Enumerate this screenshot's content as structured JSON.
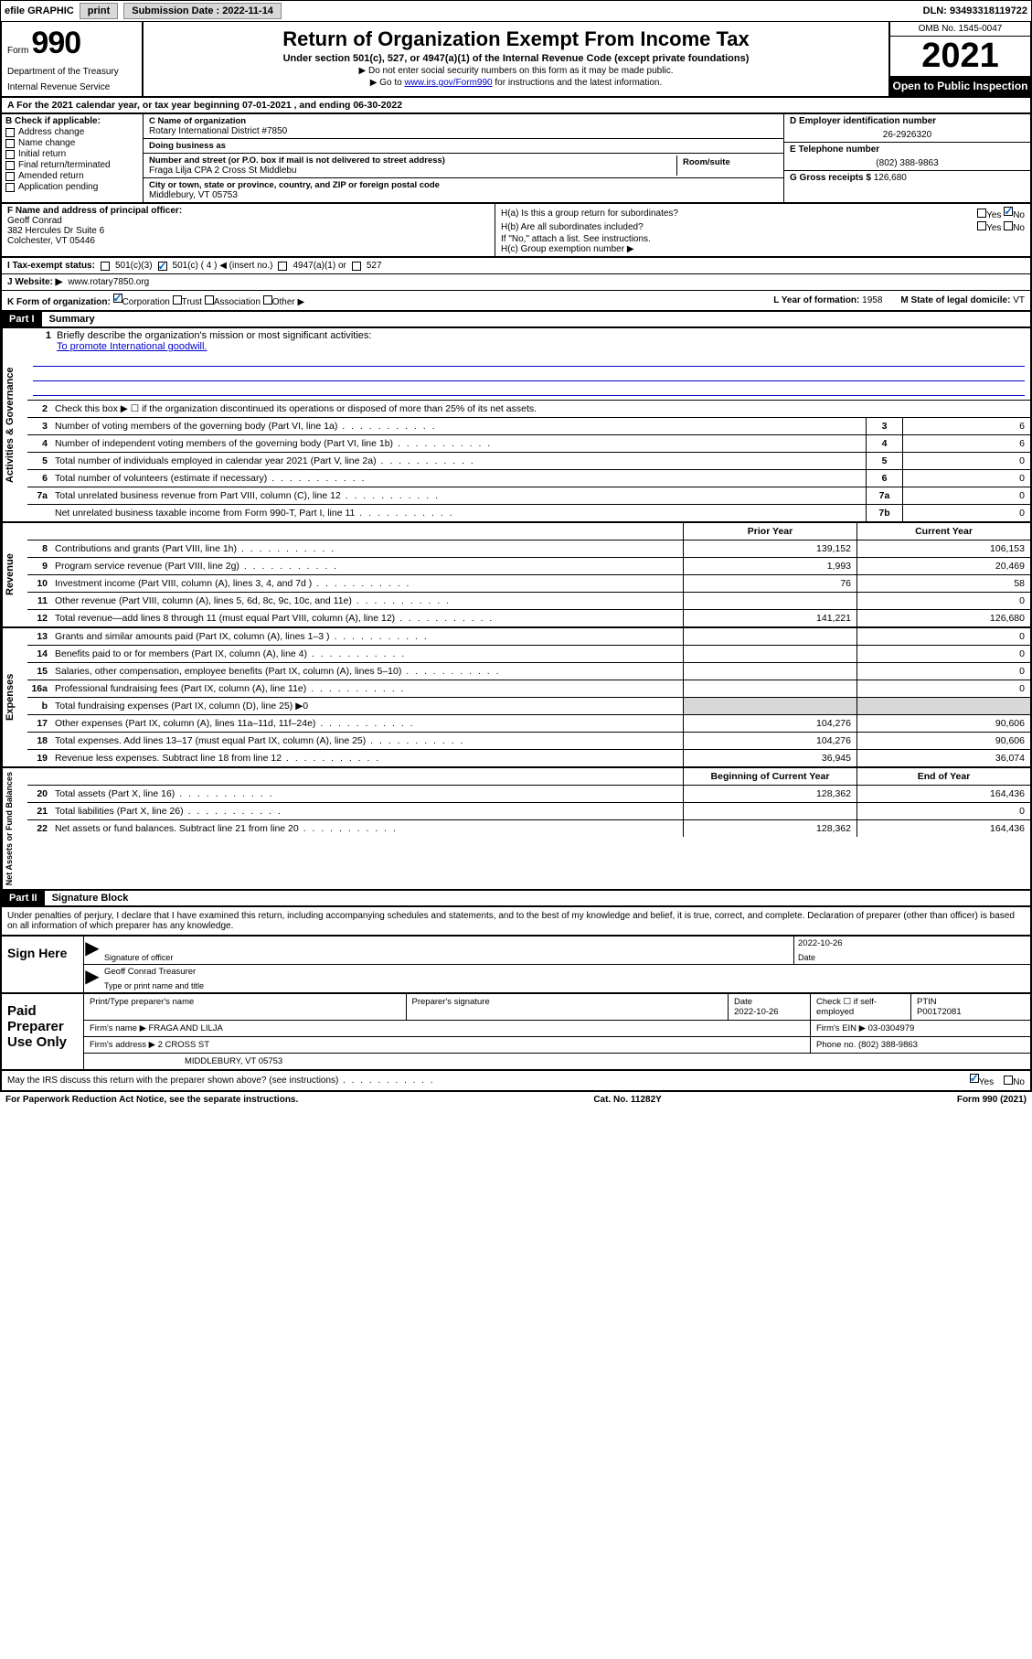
{
  "colors": {
    "black": "#000000",
    "white": "#ffffff",
    "link": "#0000cc",
    "shade": "#d8d8d8",
    "check": "#0066cc"
  },
  "topbar": {
    "efile": "efile GRAPHIC",
    "print": "print",
    "sub_label": "Submission Date : 2022-11-14",
    "dln": "DLN: 93493318119722"
  },
  "header": {
    "form_word": "Form",
    "form_num": "990",
    "title": "Return of Organization Exempt From Income Tax",
    "subtitle": "Under section 501(c), 527, or 4947(a)(1) of the Internal Revenue Code (except private foundations)",
    "note1": "▶ Do not enter social security numbers on this form as it may be made public.",
    "note2_pre": "▶ Go to ",
    "note2_link": "www.irs.gov/Form990",
    "note2_post": " for instructions and the latest information.",
    "dept": "Department of the Treasury",
    "irs": "Internal Revenue Service",
    "omb": "OMB No. 1545-0047",
    "year": "2021",
    "open": "Open to Public Inspection"
  },
  "row_a": "A For the 2021 calendar year, or tax year beginning 07-01-2021   , and ending 06-30-2022",
  "col_b": {
    "hdr": "B Check if applicable:",
    "items": [
      "Address change",
      "Name change",
      "Initial return",
      "Final return/terminated",
      "Amended return",
      "Application pending"
    ]
  },
  "col_c": {
    "name_lbl": "C Name of organization",
    "name": "Rotary International District #7850",
    "dba_lbl": "Doing business as",
    "dba": "",
    "street_lbl": "Number and street (or P.O. box if mail is not delivered to street address)",
    "street": "Fraga Lilja CPA 2 Cross St Middlebu",
    "suite_lbl": "Room/suite",
    "suite": "",
    "city_lbl": "City or town, state or province, country, and ZIP or foreign postal code",
    "city": "Middlebury, VT  05753"
  },
  "col_de": {
    "d_lbl": "D Employer identification number",
    "d_val": "26-2926320",
    "e_lbl": "E Telephone number",
    "e_val": "(802) 388-9863",
    "g_lbl": "G Gross receipts $",
    "g_val": "126,680"
  },
  "f_box": {
    "lbl": "F Name and address of principal officer:",
    "name": "Geoff Conrad",
    "addr1": "382 Hercules Dr Suite 6",
    "addr2": "Colchester, VT  05446"
  },
  "h_box": {
    "a_lbl": "H(a)  Is this a group return for subordinates?",
    "a_yes": "Yes",
    "a_no": "No",
    "b_lbl": "H(b)  Are all subordinates included?",
    "b_yes": "Yes",
    "b_no": "No",
    "b_note": "If \"No,\" attach a list. See instructions.",
    "c_lbl": "H(c)  Group exemption number ▶"
  },
  "tax_status": {
    "lbl": "I   Tax-exempt status:",
    "o1": "501(c)(3)",
    "o2": "501(c) ( 4 ) ◀ (insert no.)",
    "o3": "4947(a)(1) or",
    "o4": "527"
  },
  "website": {
    "lbl": "J   Website: ▶",
    "val": "www.rotary7850.org"
  },
  "k_row": {
    "lbl": "K Form of organization:",
    "o1": "Corporation",
    "o2": "Trust",
    "o3": "Association",
    "o4": "Other ▶",
    "l_lbl": "L Year of formation:",
    "l_val": "1958",
    "m_lbl": "M State of legal domicile:",
    "m_val": "VT"
  },
  "part1": {
    "hdr": "Part I",
    "title": "Summary"
  },
  "governance": {
    "side": "Activities & Governance",
    "q1_lbl": "Briefly describe the organization's mission or most significant activities:",
    "q1_val": "To promote International goodwill.",
    "q2": "Check this box ▶ ☐  if the organization discontinued its operations or disposed of more than 25% of its net assets.",
    "rows": [
      {
        "n": "3",
        "t": "Number of voting members of the governing body (Part VI, line 1a)",
        "box": "3",
        "v": "6"
      },
      {
        "n": "4",
        "t": "Number of independent voting members of the governing body (Part VI, line 1b)",
        "box": "4",
        "v": "6"
      },
      {
        "n": "5",
        "t": "Total number of individuals employed in calendar year 2021 (Part V, line 2a)",
        "box": "5",
        "v": "0"
      },
      {
        "n": "6",
        "t": "Total number of volunteers (estimate if necessary)",
        "box": "6",
        "v": "0"
      },
      {
        "n": "7a",
        "t": "Total unrelated business revenue from Part VIII, column (C), line 12",
        "box": "7a",
        "v": "0"
      },
      {
        "n": "",
        "t": "Net unrelated business taxable income from Form 990-T, Part I, line 11",
        "box": "7b",
        "v": "0"
      }
    ]
  },
  "revenue": {
    "side": "Revenue",
    "hdr_prior": "Prior Year",
    "hdr_curr": "Current Year",
    "rows": [
      {
        "n": "8",
        "t": "Contributions and grants (Part VIII, line 1h)",
        "p": "139,152",
        "c": "106,153"
      },
      {
        "n": "9",
        "t": "Program service revenue (Part VIII, line 2g)",
        "p": "1,993",
        "c": "20,469"
      },
      {
        "n": "10",
        "t": "Investment income (Part VIII, column (A), lines 3, 4, and 7d )",
        "p": "76",
        "c": "58"
      },
      {
        "n": "11",
        "t": "Other revenue (Part VIII, column (A), lines 5, 6d, 8c, 9c, 10c, and 11e)",
        "p": "",
        "c": "0"
      },
      {
        "n": "12",
        "t": "Total revenue—add lines 8 through 11 (must equal Part VIII, column (A), line 12)",
        "p": "141,221",
        "c": "126,680"
      }
    ]
  },
  "expenses": {
    "side": "Expenses",
    "rows": [
      {
        "n": "13",
        "t": "Grants and similar amounts paid (Part IX, column (A), lines 1–3 )",
        "p": "",
        "c": "0"
      },
      {
        "n": "14",
        "t": "Benefits paid to or for members (Part IX, column (A), line 4)",
        "p": "",
        "c": "0"
      },
      {
        "n": "15",
        "t": "Salaries, other compensation, employee benefits (Part IX, column (A), lines 5–10)",
        "p": "",
        "c": "0"
      },
      {
        "n": "16a",
        "t": "Professional fundraising fees (Part IX, column (A), line 11e)",
        "p": "",
        "c": "0"
      },
      {
        "n": "b",
        "t": "Total fundraising expenses (Part IX, column (D), line 25) ▶0",
        "p": "shade",
        "c": "shade"
      },
      {
        "n": "17",
        "t": "Other expenses (Part IX, column (A), lines 11a–11d, 11f–24e)",
        "p": "104,276",
        "c": "90,606"
      },
      {
        "n": "18",
        "t": "Total expenses. Add lines 13–17 (must equal Part IX, column (A), line 25)",
        "p": "104,276",
        "c": "90,606"
      },
      {
        "n": "19",
        "t": "Revenue less expenses. Subtract line 18 from line 12",
        "p": "36,945",
        "c": "36,074"
      }
    ]
  },
  "netassets": {
    "side": "Net Assets or Fund Balances",
    "hdr_beg": "Beginning of Current Year",
    "hdr_end": "End of Year",
    "rows": [
      {
        "n": "20",
        "t": "Total assets (Part X, line 16)",
        "p": "128,362",
        "c": "164,436"
      },
      {
        "n": "21",
        "t": "Total liabilities (Part X, line 26)",
        "p": "",
        "c": "0"
      },
      {
        "n": "22",
        "t": "Net assets or fund balances. Subtract line 21 from line 20",
        "p": "128,362",
        "c": "164,436"
      }
    ]
  },
  "part2": {
    "hdr": "Part II",
    "title": "Signature Block"
  },
  "sig_intro": "Under penalties of perjury, I declare that I have examined this return, including accompanying schedules and statements, and to the best of my knowledge and belief, it is true, correct, and complete. Declaration of preparer (other than officer) is based on all information of which preparer has any knowledge.",
  "sign_here": {
    "lbl": "Sign Here",
    "sig_lbl": "Signature of officer",
    "date_lbl": "Date",
    "date_val": "2022-10-26",
    "name": "Geoff Conrad  Treasurer",
    "name_lbl": "Type or print name and title"
  },
  "paid_prep": {
    "lbl": "Paid Preparer Use Only",
    "h1": "Print/Type preparer's name",
    "h2": "Preparer's signature",
    "h3": "Date",
    "h4": "Check ☐ if self-employed",
    "h5": "PTIN",
    "date": "2022-10-26",
    "ptin": "P00172081",
    "firm_lbl": "Firm's name    ▶",
    "firm": "FRAGA AND LILJA",
    "ein_lbl": "Firm's EIN ▶",
    "ein": "03-0304979",
    "addr_lbl": "Firm's address ▶",
    "addr1": "2 CROSS ST",
    "addr2": "MIDDLEBURY, VT  05753",
    "phone_lbl": "Phone no.",
    "phone": "(802) 388-9863"
  },
  "discuss": {
    "q": "May the IRS discuss this return with the preparer shown above? (see instructions)",
    "yes": "Yes",
    "no": "No"
  },
  "footer": {
    "pra": "For Paperwork Reduction Act Notice, see the separate instructions.",
    "cat": "Cat. No. 11282Y",
    "form": "Form 990 (2021)"
  }
}
